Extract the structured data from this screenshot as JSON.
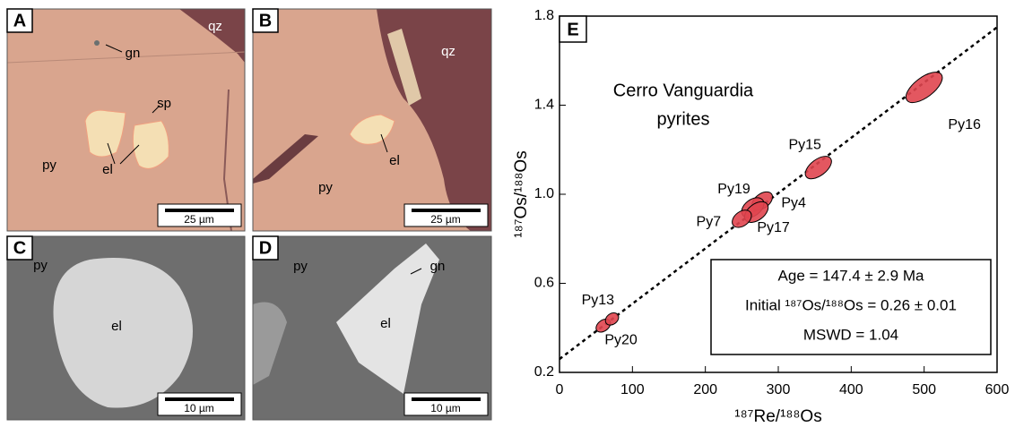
{
  "panels": [
    {
      "label": "A",
      "texts": [
        "qz",
        "gn",
        "sp",
        "el",
        "py"
      ],
      "scale": "25 µm"
    },
    {
      "label": "B",
      "texts": [
        "qz",
        "el",
        "py"
      ],
      "scale": "25 µm"
    },
    {
      "label": "C",
      "texts": [
        "py",
        "el"
      ],
      "scale": "10 µm"
    },
    {
      "label": "D",
      "texts": [
        "py",
        "gn",
        "el"
      ],
      "scale": "10 µm"
    }
  ],
  "chart_data": {
    "type": "scatter",
    "panel_label": "E",
    "x_label": "¹⁸⁷Re/¹⁸⁸Os",
    "y_label": "¹⁸⁷Os/¹⁸⁸Os",
    "annotations": [
      "Cerro Vanguardia",
      "pyrites"
    ],
    "result_box": [
      "Age = 147.4 ± 2.9 Ma",
      "Initial ¹⁸⁷Os/¹⁸⁸Os = 0.26 ± 0.01",
      "MSWD = 1.04"
    ],
    "series": [
      {
        "color": "#e0454f",
        "labels": [
          "Py16",
          "Py15",
          "Py4",
          "Py19",
          "Py17",
          "Py7",
          "Py13",
          "Py20"
        ],
        "x": [
          500,
          355,
          278,
          265,
          270,
          250,
          60,
          72
        ],
        "values": [
          1.48,
          1.12,
          0.97,
          0.94,
          0.92,
          0.89,
          0.41,
          0.44
        ]
      }
    ],
    "fit_line": {
      "x": [
        0,
        600
      ],
      "y": [
        0.26,
        1.75
      ]
    },
    "xlim": [
      0,
      600
    ],
    "xticks": [
      0,
      100,
      200,
      300,
      400,
      500,
      600
    ],
    "ylim": [
      0.2,
      1.8
    ],
    "yticks": [
      0.2,
      0.6,
      {
        "value": 1,
        "label": "1.0"
      },
      1.4,
      1.8
    ]
  }
}
